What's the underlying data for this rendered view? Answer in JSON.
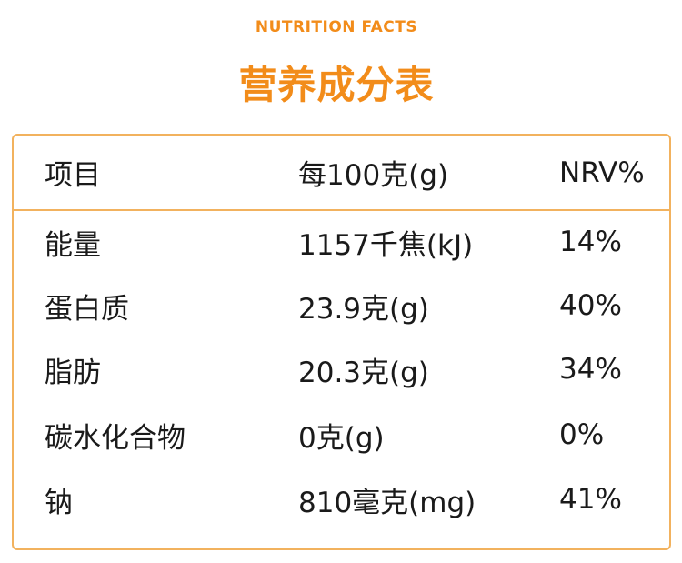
{
  "header": {
    "subtitle": "NUTRITION FACTS",
    "title": "营养成分表"
  },
  "table": {
    "columns": [
      "项目",
      "每100克(g)",
      "NRV%"
    ],
    "rows": [
      [
        "能量",
        "1157千焦(kJ)",
        "14%"
      ],
      [
        "蛋白质",
        "23.9克(g)",
        "40%"
      ],
      [
        "脂肪",
        "20.3克(g)",
        "34%"
      ],
      [
        "碳水化合物",
        "0克(g)",
        "0%"
      ],
      [
        "钠",
        "810毫克(mg)",
        "41%"
      ]
    ]
  },
  "colors": {
    "accent": "#f28c1a",
    "border": "#f2b25e",
    "text": "#1a1a1a"
  }
}
